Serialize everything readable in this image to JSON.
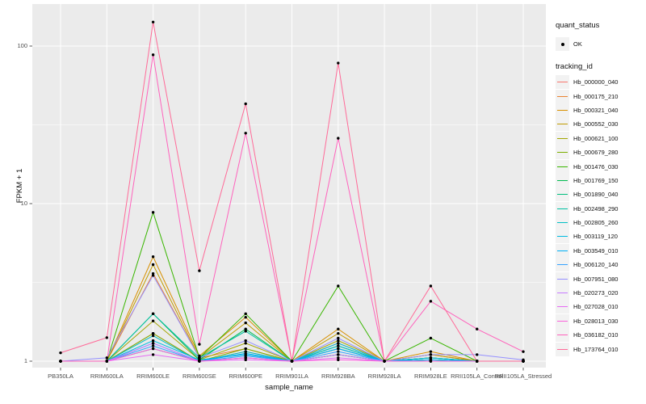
{
  "chart_data": {
    "type": "line",
    "title": "",
    "xlabel": "sample_name",
    "ylabel": "FPKM + 1",
    "yscale": "log10",
    "ylim": [
      0.91,
      185
    ],
    "yticks": [
      1,
      10,
      100
    ],
    "ytick_labels": [
      "1",
      "10",
      "100"
    ],
    "minor_gridlines": [
      3.162,
      31.62
    ],
    "grid": true,
    "panel_bg": "#EBEBEB",
    "grid_color": "#FFFFFF",
    "point_color": "#000000",
    "tick_color": "#333333",
    "legend_position": "right",
    "categories": [
      "PB350LA",
      "RRIM600LA",
      "RRIM600LE",
      "RRIM600SE",
      "RRIM600PE",
      "RRIM901LA",
      "RRIM928BA",
      "RRIM928LA",
      "RRIM928LE",
      "RRII105LA_Control",
      "RRII105LA_Stressed"
    ],
    "series": [
      {
        "name": "Hb_000000_040",
        "color": "#F8766D",
        "values": [
          1,
          1,
          1.5,
          1,
          1.15,
          1,
          1.2,
          1,
          1.05,
          1,
          1
        ]
      },
      {
        "name": "Hb_000175_210",
        "color": "#EA8331",
        "values": [
          1,
          1,
          3.6,
          1.05,
          1.2,
          1,
          1.3,
          1,
          1.1,
          1,
          1
        ]
      },
      {
        "name": "Hb_000321_040",
        "color": "#D89000",
        "values": [
          1,
          1,
          4.6,
          1.08,
          1.9,
          1,
          1.6,
          1,
          1.15,
          1,
          1
        ]
      },
      {
        "name": "Hb_000552_030",
        "color": "#C09B00",
        "values": [
          1,
          1,
          4.1,
          1.05,
          1.75,
          1,
          1.5,
          1,
          1.1,
          1,
          1
        ]
      },
      {
        "name": "Hb_000621_100",
        "color": "#A3A500",
        "values": [
          1,
          1,
          1.8,
          1.02,
          1.3,
          1,
          1.35,
          1,
          1.05,
          1,
          1
        ]
      },
      {
        "name": "Hb_000679_280",
        "color": "#7CAE00",
        "values": [
          1,
          1,
          1.5,
          1,
          1.2,
          1,
          1.1,
          1,
          1.02,
          1,
          1
        ]
      },
      {
        "name": "Hb_001476_030",
        "color": "#39B600",
        "values": [
          1,
          1,
          8.8,
          1.05,
          2.0,
          1,
          3.0,
          1,
          1.4,
          1,
          1
        ]
      },
      {
        "name": "Hb_001769_150",
        "color": "#00BB4E",
        "values": [
          1,
          1,
          2.0,
          1.02,
          1.6,
          1,
          1.25,
          1,
          1.05,
          1,
          1
        ]
      },
      {
        "name": "Hb_001890_040",
        "color": "#00BF7D",
        "values": [
          1,
          1,
          1.2,
          1,
          1.05,
          1,
          1.1,
          1,
          1,
          1,
          1
        ]
      },
      {
        "name": "Hb_002498_290",
        "color": "#00C1A3",
        "values": [
          1,
          1,
          2.0,
          1.05,
          1.55,
          1,
          1.2,
          1,
          1.05,
          1,
          1
        ]
      },
      {
        "name": "Hb_002805_260",
        "color": "#00BFC4",
        "values": [
          1,
          1,
          1.45,
          1,
          1.15,
          1,
          1.25,
          1,
          1.02,
          1,
          1
        ]
      },
      {
        "name": "Hb_003119_120",
        "color": "#00BAE0",
        "values": [
          1,
          1,
          1.35,
          1.02,
          1.1,
          1,
          1.3,
          1,
          1.05,
          1,
          1
        ]
      },
      {
        "name": "Hb_003549_010",
        "color": "#00B0F6",
        "values": [
          1,
          1,
          1.3,
          1,
          1.12,
          1,
          1.2,
          1,
          1.02,
          1,
          1
        ]
      },
      {
        "name": "Hb_006120_140",
        "color": "#35A2FF",
        "values": [
          1,
          1,
          1.25,
          1,
          1.08,
          1,
          1.15,
          1,
          1,
          1,
          1
        ]
      },
      {
        "name": "Hb_007951_080",
        "color": "#9590FF",
        "values": [
          1,
          1.05,
          3.5,
          1.05,
          1.35,
          1,
          1.4,
          1,
          1.1,
          1.1,
          1.02
        ]
      },
      {
        "name": "Hb_020273_020",
        "color": "#C77CFF",
        "values": [
          1,
          1,
          1.3,
          1,
          1.05,
          1,
          1.1,
          1,
          1,
          1,
          1
        ]
      },
      {
        "name": "Hb_027028_010",
        "color": "#E76BF3",
        "values": [
          1,
          1,
          1.1,
          1,
          1.02,
          1,
          1.05,
          1,
          1,
          1,
          1
        ]
      },
      {
        "name": "Hb_028013_030",
        "color": "#FA62DB",
        "values": [
          1,
          1,
          1.2,
          1,
          1.05,
          1,
          1.02,
          1,
          1,
          1,
          1
        ]
      },
      {
        "name": "Hb_036182_010",
        "color": "#FF62BC",
        "values": [
          1,
          1,
          88,
          1.28,
          28,
          1,
          26,
          1,
          2.4,
          1.6,
          1.15
        ]
      },
      {
        "name": "Hb_173764_010",
        "color": "#FF6A98",
        "values": [
          1.13,
          1.41,
          142,
          3.75,
          43,
          1,
          78,
          1,
          3.0,
          1,
          1
        ]
      }
    ]
  },
  "legend": {
    "quant_status_title": "quant_status",
    "quant_status_items": [
      {
        "label": "OK",
        "marker": "point"
      }
    ],
    "tracking_id_title": "tracking_id"
  }
}
